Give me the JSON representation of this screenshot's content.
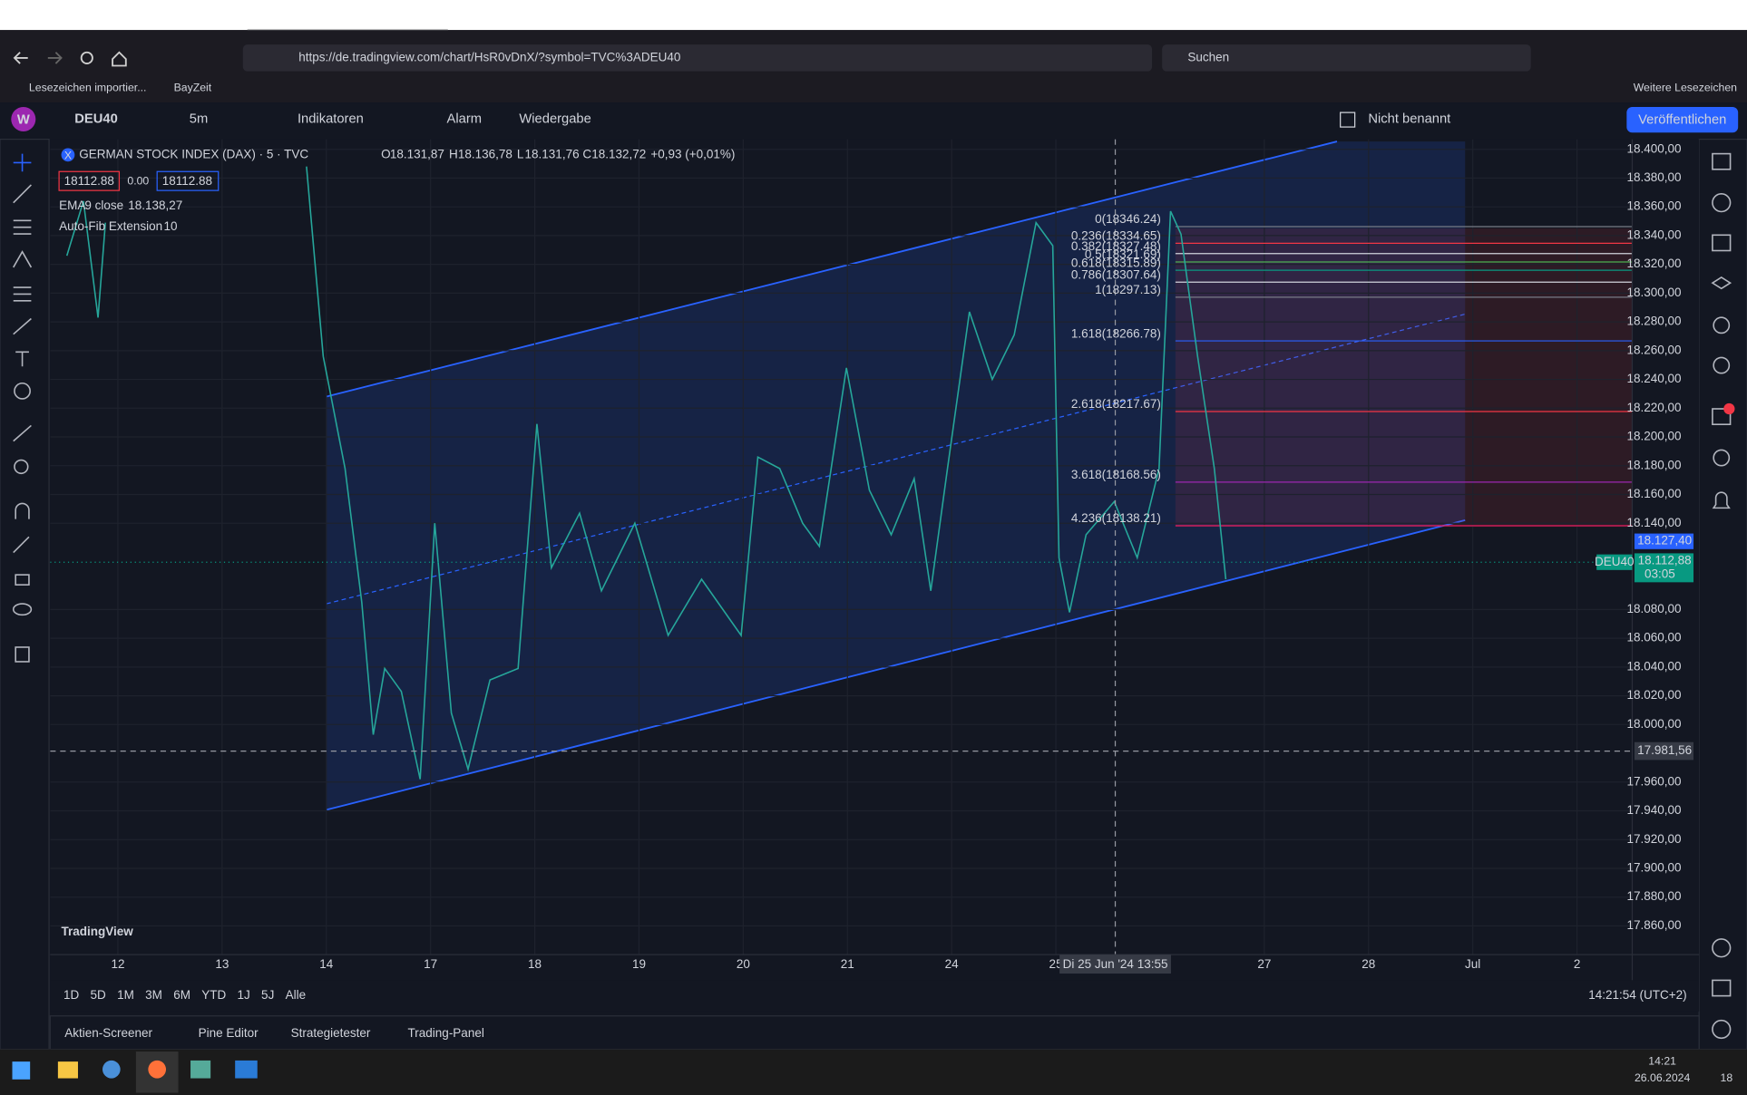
{
  "browser": {
    "url": "https://de.tradingview.com/chart/HsR0vDnX/?symbol=TVC%3ADEU40",
    "search": "Suchen",
    "bookmarks": [
      "Lesezeichen importier...",
      "BayZeit"
    ],
    "other_bookmarks": "Weitere Lesezeichen"
  },
  "toolbar": {
    "avatar": "W",
    "symbol": "DEU40",
    "interval": "5m",
    "indicators": "Indikatoren",
    "alarm": "Alarm",
    "replay": "Wiedergabe",
    "layout_name": "Nicht benannt",
    "publish": "Veröffentlichen"
  },
  "legend": {
    "badge": "X",
    "title": "GERMAN STOCK INDEX (DAX) · 5 · TVC",
    "open_letter": "O",
    "open": "18.131,87",
    "high_letter": "H",
    "high": "18.136,78",
    "low_letter": "L",
    "low": "18.131,76",
    "close_letter": "C",
    "close": "18.132,72",
    "change": "+0,93 (+0,01%)",
    "sell": "18112.88",
    "spread": "0.00",
    "buy": "18112.88",
    "ema": "EMA",
    "ema_params": "9 close",
    "ema_value": "18.138,27",
    "fib": "Auto-Fib Extension",
    "fib_param": "10"
  },
  "chart_data": {
    "type": "line",
    "color": "#26a69a",
    "x": [
      -0.49,
      -0.33,
      -0.19,
      -0.12,
      0.8,
      1.81,
      1.97,
      2.18,
      2.34,
      2.45,
      2.56,
      2.72,
      2.9,
      3.04,
      3.2,
      3.36,
      3.57,
      3.84,
      4.02,
      4.16,
      4.43,
      4.64,
      4.96,
      5.28,
      5.6,
      5.98,
      6.14,
      6.35,
      6.57,
      6.73,
      6.99,
      7.21,
      7.42,
      7.64,
      7.8,
      7.96,
      8.17,
      8.39,
      8.6,
      8.81,
      8.97,
      9.03,
      9.13,
      9.29,
      9.56,
      9.78,
      9.99,
      10.1,
      10.2,
      10.36,
      10.52,
      10.63
    ],
    "values": [
      18326,
      18364,
      18283,
      18349,
      null,
      18388,
      18256,
      18178,
      18085,
      17993,
      18039,
      18023,
      17962,
      18140,
      18008,
      17969,
      18031,
      18039,
      18209,
      18109,
      18147,
      18093,
      18140,
      18062,
      18101,
      18062,
      18186,
      18178,
      18140,
      18124,
      18248,
      18163,
      18132,
      18171,
      18093,
      18178,
      18287,
      18240,
      18271,
      18349,
      18333,
      18116,
      18078,
      18132,
      18155,
      18116,
      18178,
      18357,
      18341,
      18256,
      18178,
      18101
    ],
    "xlim": [
      -0.65,
      14.53
    ],
    "ylim": [
      17840,
      18407
    ],
    "xticks": [
      {
        "value": 0,
        "label": "12"
      },
      {
        "value": 1,
        "label": "13"
      },
      {
        "value": 2,
        "label": "14"
      },
      {
        "value": 3,
        "label": "17"
      },
      {
        "value": 4,
        "label": "18"
      },
      {
        "value": 5,
        "label": "19"
      },
      {
        "value": 6,
        "label": "20"
      },
      {
        "value": 7,
        "label": "21"
      },
      {
        "value": 8,
        "label": "24"
      },
      {
        "value": 9,
        "label": "25"
      },
      {
        "value": 11,
        "label": "27"
      },
      {
        "value": 12,
        "label": "28"
      },
      {
        "value": 13,
        "label": "Jul"
      },
      {
        "value": 14,
        "label": "2"
      }
    ],
    "yticks": [
      {
        "value": 18400,
        "label": "18.400,00"
      },
      {
        "value": 18380,
        "label": "18.380,00"
      },
      {
        "value": 18360,
        "label": "18.360,00"
      },
      {
        "value": 18340,
        "label": "18.340,00"
      },
      {
        "value": 18320,
        "label": "18.320,00"
      },
      {
        "value": 18300,
        "label": "18.300,00"
      },
      {
        "value": 18280,
        "label": "18.280,00"
      },
      {
        "value": 18260,
        "label": "18.260,00"
      },
      {
        "value": 18240,
        "label": "18.240,00"
      },
      {
        "value": 18220,
        "label": "18.220,00"
      },
      {
        "value": 18200,
        "label": "18.200,00"
      },
      {
        "value": 18180,
        "label": "18.180,00"
      },
      {
        "value": 18160,
        "label": "18.160,00"
      },
      {
        "value": 18140,
        "label": "18.140,00"
      },
      {
        "value": 18080,
        "label": "18.080,00"
      },
      {
        "value": 18060,
        "label": "18.060,00"
      },
      {
        "value": 18040,
        "label": "18.040,00"
      },
      {
        "value": 18020,
        "label": "18.020,00"
      },
      {
        "value": 18000,
        "label": "18.000,00"
      },
      {
        "value": 17960,
        "label": "17.960,00"
      },
      {
        "value": 17940,
        "label": "17.940,00"
      },
      {
        "value": 17920,
        "label": "17.920,00"
      },
      {
        "value": 17900,
        "label": "17.900,00"
      },
      {
        "value": 17880,
        "label": "17.880,00"
      },
      {
        "value": 17860,
        "label": "17.860,00"
      }
    ],
    "fib_levels": [
      {
        "label": "0(18346.24)",
        "value": 18346.24,
        "color": "#787b86"
      },
      {
        "label": "0.236(18334.65)",
        "value": 18334.65,
        "color": "#f23645"
      },
      {
        "label": "0.382(18327.48)",
        "value": 18327.48,
        "color": "#d1d4dc"
      },
      {
        "label": "0.5(18321.69)",
        "value": 18321.69,
        "color": "#4caf50"
      },
      {
        "label": "0.618(18315.89)",
        "value": 18315.89,
        "color": "#089981"
      },
      {
        "label": "0.786(18307.64)",
        "value": 18307.64,
        "color": "#d1d4dc"
      },
      {
        "label": "1(18297.13)",
        "value": 18297.13,
        "color": "#787b86"
      },
      {
        "label": "1.618(18266.78)",
        "value": 18266.78,
        "color": "#2962ff"
      },
      {
        "label": "2.618(18217.67)",
        "value": 18217.67,
        "color": "#f23645"
      },
      {
        "label": "3.618(18168.56)",
        "value": 18168.56,
        "color": "#9c27b0"
      },
      {
        "label": "4.236(18138.21)",
        "value": 18138.21,
        "color": "#e91e63"
      }
    ],
    "blue_price": {
      "value": 18127.4,
      "label": "18.127,40"
    },
    "last_price": {
      "value": 18112.88,
      "label": "18.112,88"
    },
    "symbol_tag": "DEU40",
    "countdown": "03:05",
    "crosshair_price": {
      "value": 17981.56,
      "label": "17.981,56"
    },
    "crosshair_time": "Di 25 Jun '24  13:55",
    "logo": "TradingView"
  },
  "ranges": [
    "1D",
    "5D",
    "1M",
    "3M",
    "6M",
    "YTD",
    "1J",
    "5J",
    "Alle"
  ],
  "clock": "14:21:54 (UTC+2)",
  "bottom_tabs": [
    "Aktien-Screener",
    "Pine Editor",
    "Strategietester",
    "Trading-Panel"
  ],
  "taskbar": {
    "time": "14:21",
    "date": "26.06.2024",
    "notifications": "18"
  }
}
